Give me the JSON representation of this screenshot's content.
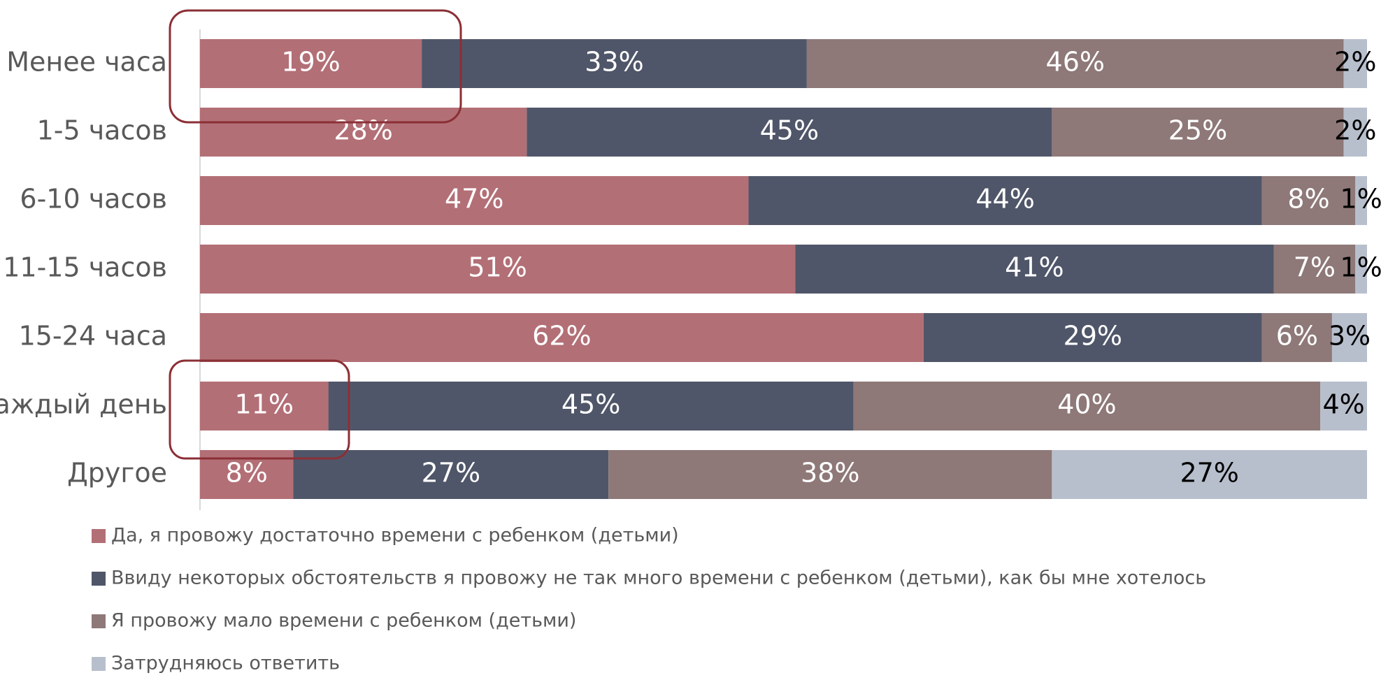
{
  "chart_data": {
    "type": "stacked-barh",
    "categories": [
      "Менее часа",
      "1-5 часов",
      "6-10 часов",
      "11-15 часов",
      "15-24 часа",
      "каждый день",
      "Другое"
    ],
    "xlim": [
      0,
      100
    ],
    "series": [
      {
        "name": "Да, я провожу достаточно времени с ребенком (детьми)",
        "color": "#b36f76",
        "values": [
          19,
          28,
          47,
          51,
          62,
          11,
          8
        ],
        "value_labels": [
          "19%",
          "28%",
          "47%",
          "51%",
          "62%",
          "11%",
          "8%"
        ]
      },
      {
        "name": "Ввиду некоторых обстоятельств я провожу не так много времени с ребенком (детьми), как бы мне хотелось",
        "color": "#505669",
        "values": [
          33,
          45,
          44,
          41,
          29,
          45,
          27
        ],
        "value_labels": [
          "33%",
          "45%",
          "44%",
          "41%",
          "29%",
          "45%",
          "27%"
        ]
      },
      {
        "name": "Я провожу мало времени с ребенком (детьми)",
        "color": "#8e7878",
        "values": [
          46,
          25,
          8,
          7,
          6,
          40,
          38
        ],
        "value_labels": [
          "46%",
          "25%",
          "8%",
          "7%",
          "6%",
          "40%",
          "38%"
        ]
      },
      {
        "name": "Затрудняюсь ответить",
        "color": "#b8bfcc",
        "values": [
          2,
          2,
          1,
          1,
          3,
          4,
          27
        ],
        "value_labels": [
          "2%",
          "2%",
          "1%",
          "1%",
          "3%",
          "4%",
          "27%"
        ]
      }
    ]
  }
}
